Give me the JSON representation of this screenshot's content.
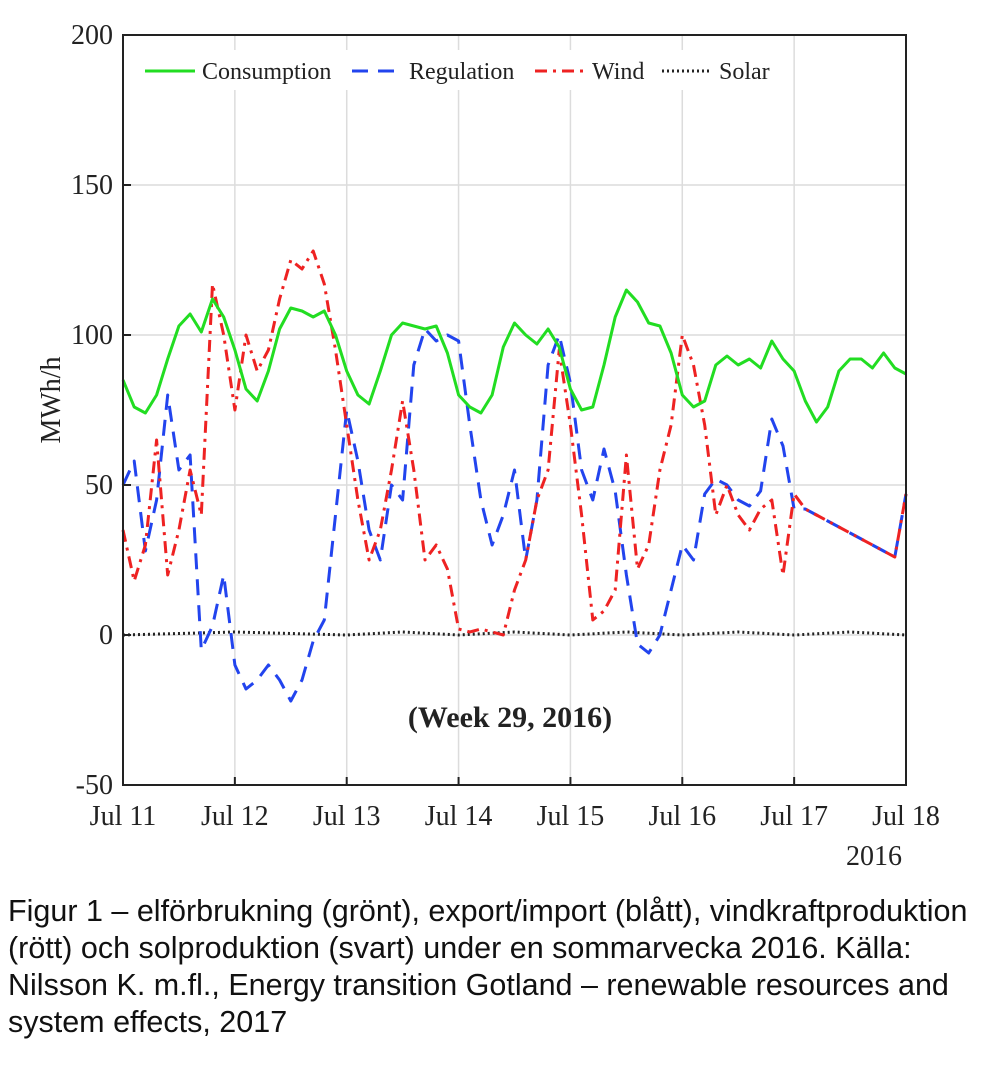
{
  "caption": "Figur 1 – elförbrukning (grönt), export/import (blått), vindkraftproduktion (rött) och solproduktion (svart) under en sommarvecka 2016. Källa: Nilsson K. m.fl., Energy transition Gotland – renewable resources and system effects, 2017",
  "chart_data": {
    "type": "line",
    "title": "",
    "annotation": "(Week 29,  2016)",
    "ylabel": "MWh/h",
    "xlabel": "",
    "x_year_label": "2016",
    "ylim": [
      -50,
      200
    ],
    "xlim": [
      0,
      7
    ],
    "yticks": [
      -50,
      0,
      50,
      100,
      150,
      200
    ],
    "xticks": [
      0,
      1,
      2,
      3,
      4,
      5,
      6,
      7
    ],
    "xtick_labels": [
      "Jul 11",
      "Jul 12",
      "Jul 13",
      "Jul 14",
      "Jul 15",
      "Jul 16",
      "Jul 17",
      "Jul 18"
    ],
    "grid": true,
    "legend_position": "top",
    "series": [
      {
        "name": "Consumption",
        "color": "#22dd22",
        "style": "solid",
        "x": [
          0,
          0.1,
          0.2,
          0.3,
          0.4,
          0.5,
          0.6,
          0.7,
          0.8,
          0.9,
          1.0,
          1.1,
          1.2,
          1.3,
          1.4,
          1.5,
          1.6,
          1.7,
          1.8,
          1.9,
          2.0,
          2.1,
          2.2,
          2.3,
          2.4,
          2.5,
          2.6,
          2.7,
          2.8,
          2.9,
          3.0,
          3.1,
          3.2,
          3.3,
          3.4,
          3.5,
          3.6,
          3.7,
          3.8,
          3.9,
          4.0,
          4.1,
          4.2,
          4.3,
          4.4,
          4.5,
          4.6,
          4.7,
          4.8,
          4.9,
          5.0,
          5.1,
          5.2,
          5.3,
          5.4,
          5.5,
          5.6,
          5.7,
          5.8,
          5.9,
          6.0,
          6.1,
          6.2,
          6.3,
          6.4,
          6.5,
          6.6,
          6.7,
          6.8,
          6.9,
          7.0
        ],
        "values": [
          85,
          76,
          74,
          80,
          92,
          103,
          107,
          101,
          112,
          106,
          95,
          82,
          78,
          88,
          102,
          109,
          108,
          106,
          108,
          100,
          88,
          80,
          77,
          88,
          100,
          104,
          103,
          102,
          103,
          94,
          80,
          76,
          74,
          80,
          96,
          104,
          100,
          97,
          102,
          96,
          82,
          75,
          76,
          90,
          106,
          115,
          111,
          104,
          103,
          94,
          80,
          76,
          78,
          90,
          93,
          90,
          92,
          89,
          98,
          92,
          88,
          78,
          71,
          76,
          88,
          92,
          92,
          89,
          94,
          89,
          87
        ]
      },
      {
        "name": "Regulation",
        "color": "#2244ee",
        "style": "dashed",
        "x": [
          0,
          0.1,
          0.2,
          0.3,
          0.4,
          0.5,
          0.6,
          0.7,
          0.8,
          0.9,
          1.0,
          1.1,
          1.2,
          1.3,
          1.4,
          1.5,
          1.6,
          1.7,
          1.8,
          1.9,
          2.0,
          2.1,
          2.2,
          2.3,
          2.4,
          2.5,
          2.6,
          2.7,
          2.8,
          2.9,
          3.0,
          3.1,
          3.2,
          3.3,
          3.4,
          3.5,
          3.6,
          3.7,
          3.8,
          3.9,
          4.0,
          4.1,
          4.2,
          4.3,
          4.4,
          4.5,
          4.6,
          4.7,
          4.8,
          4.9,
          5.0,
          5.1,
          5.2,
          5.3,
          5.4,
          5.5,
          5.6,
          5.7,
          5.8,
          5.9,
          6.0,
          6.1,
          6.2,
          6.3,
          6.4,
          6.5,
          6.6,
          6.7,
          6.8,
          6.9,
          7.0
        ],
        "values": [
          50,
          58,
          28,
          45,
          80,
          55,
          60,
          -5,
          3,
          20,
          -10,
          -18,
          -15,
          -10,
          -15,
          -22,
          -15,
          -2,
          5,
          40,
          75,
          58,
          35,
          25,
          50,
          45,
          90,
          102,
          98,
          100,
          98,
          70,
          45,
          30,
          40,
          55,
          25,
          45,
          90,
          100,
          84,
          55,
          45,
          62,
          48,
          20,
          -3,
          -6,
          0,
          15,
          30,
          25,
          47,
          52,
          50,
          45,
          43,
          48,
          72,
          63,
          42,
          42,
          40,
          38,
          36,
          34,
          32,
          30,
          28,
          26,
          47
        ]
      },
      {
        "name": "Wind",
        "color": "#ee2222",
        "style": "dashdot",
        "x": [
          0,
          0.1,
          0.2,
          0.3,
          0.4,
          0.5,
          0.6,
          0.7,
          0.8,
          0.9,
          1.0,
          1.1,
          1.2,
          1.3,
          1.4,
          1.5,
          1.6,
          1.7,
          1.8,
          1.9,
          2.0,
          2.1,
          2.2,
          2.3,
          2.4,
          2.5,
          2.6,
          2.7,
          2.8,
          2.9,
          3.0,
          3.1,
          3.2,
          3.3,
          3.4,
          3.5,
          3.6,
          3.7,
          3.8,
          3.9,
          4.0,
          4.1,
          4.2,
          4.3,
          4.4,
          4.5,
          4.6,
          4.7,
          4.8,
          4.9,
          5.0,
          5.1,
          5.2,
          5.3,
          5.4,
          5.5,
          5.6,
          5.7,
          5.8,
          5.9,
          6.0,
          6.1,
          6.2,
          6.3,
          6.4,
          6.5,
          6.6,
          6.7,
          6.8,
          6.9,
          7.0
        ],
        "values": [
          35,
          18,
          30,
          65,
          20,
          35,
          55,
          40,
          117,
          100,
          75,
          100,
          88,
          95,
          112,
          125,
          122,
          128,
          117,
          95,
          70,
          45,
          25,
          35,
          55,
          78,
          55,
          25,
          30,
          22,
          2,
          1,
          2,
          1,
          0,
          15,
          25,
          45,
          55,
          95,
          70,
          40,
          5,
          8,
          15,
          60,
          22,
          30,
          55,
          70,
          100,
          90,
          70,
          40,
          50,
          40,
          35,
          42,
          45,
          20,
          47,
          42,
          40,
          38,
          36,
          34,
          32,
          30,
          28,
          26,
          47
        ]
      },
      {
        "name": "Solar",
        "color": "#222222",
        "style": "dotted",
        "x": [
          0,
          0.5,
          1.0,
          1.5,
          2.0,
          2.5,
          3.0,
          3.5,
          4.0,
          4.5,
          5.0,
          5.5,
          6.0,
          6.5,
          7.0
        ],
        "values": [
          0,
          0.5,
          1,
          0.5,
          0,
          1,
          0,
          1,
          0,
          1,
          0,
          1,
          0,
          1,
          0
        ]
      }
    ]
  }
}
